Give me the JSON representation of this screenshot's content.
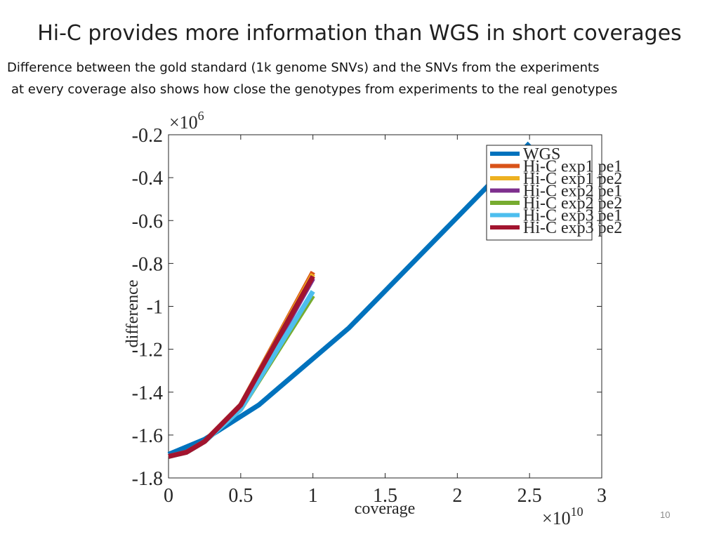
{
  "slide": {
    "title": "Hi-C provides more information than WGS in short coverages",
    "subtitle_line1": "Difference between the gold standard (1k genome SNVs) and the SNVs from the experiments",
    "subtitle_line2": "at every coverage also shows how close the genotypes from experiments to the real genotypes",
    "page_number": "10"
  },
  "chart_data": {
    "type": "line",
    "xlabel": "coverage",
    "ylabel": "difference",
    "x_multiplier_label": "×10",
    "x_multiplier_exp": "10",
    "y_multiplier_label": "×10",
    "y_multiplier_exp": "6",
    "xlim": [
      0,
      3
    ],
    "ylim": [
      -1.8,
      -0.2
    ],
    "x_ticks": [
      0,
      0.5,
      1,
      1.5,
      2,
      2.5,
      3
    ],
    "x_tick_labels": [
      "0",
      "0.5",
      "1",
      "1.5",
      "2",
      "2.5",
      "3"
    ],
    "y_ticks": [
      -1.8,
      -1.6,
      -1.4,
      -1.2,
      -1.0,
      -0.8,
      -0.6,
      -0.4,
      -0.2
    ],
    "y_tick_labels": [
      "-1.8",
      "-1.6",
      "-1.4",
      "-1.2",
      "-1",
      "-0.8",
      "-0.6",
      "-0.4",
      "-0.2"
    ],
    "grid": false,
    "legend_position": "top-right",
    "series": [
      {
        "name": "WGS",
        "color": "#0072BD",
        "x": [
          0,
          0.25,
          0.625,
          1.25,
          2.5
        ],
        "y": [
          -1.69,
          -1.62,
          -1.46,
          -1.1,
          -0.24
        ]
      },
      {
        "name": "Hi-C exp1 pe1",
        "color": "#D95319",
        "x": [
          0,
          0.125,
          0.25,
          0.5,
          1.0
        ],
        "y": [
          -1.7,
          -1.68,
          -1.63,
          -1.46,
          -0.84
        ]
      },
      {
        "name": "Hi-C exp1 pe2",
        "color": "#EDB120",
        "x": [
          0,
          0.125,
          0.25,
          0.5,
          1.0
        ],
        "y": [
          -1.7,
          -1.68,
          -1.63,
          -1.46,
          -0.85
        ]
      },
      {
        "name": "Hi-C exp2 pe1",
        "color": "#7E2F8E",
        "x": [
          0,
          0.125,
          0.25,
          0.5,
          1.0
        ],
        "y": [
          -1.7,
          -1.68,
          -1.63,
          -1.47,
          -0.87
        ]
      },
      {
        "name": "Hi-C exp2 pe2",
        "color": "#77AC30",
        "x": [
          0,
          0.125,
          0.25,
          0.5,
          1.0
        ],
        "y": [
          -1.7,
          -1.68,
          -1.63,
          -1.48,
          -0.95
        ]
      },
      {
        "name": "Hi-C exp3 pe1",
        "color": "#4DBEEE",
        "x": [
          0,
          0.125,
          0.25,
          0.5,
          1.0
        ],
        "y": [
          -1.7,
          -1.68,
          -1.63,
          -1.48,
          -0.93
        ]
      },
      {
        "name": "Hi-C exp3 pe2",
        "color": "#A2142F",
        "x": [
          0,
          0.125,
          0.25,
          0.5,
          1.0
        ],
        "y": [
          -1.7,
          -1.68,
          -1.63,
          -1.46,
          -0.86
        ]
      }
    ]
  }
}
